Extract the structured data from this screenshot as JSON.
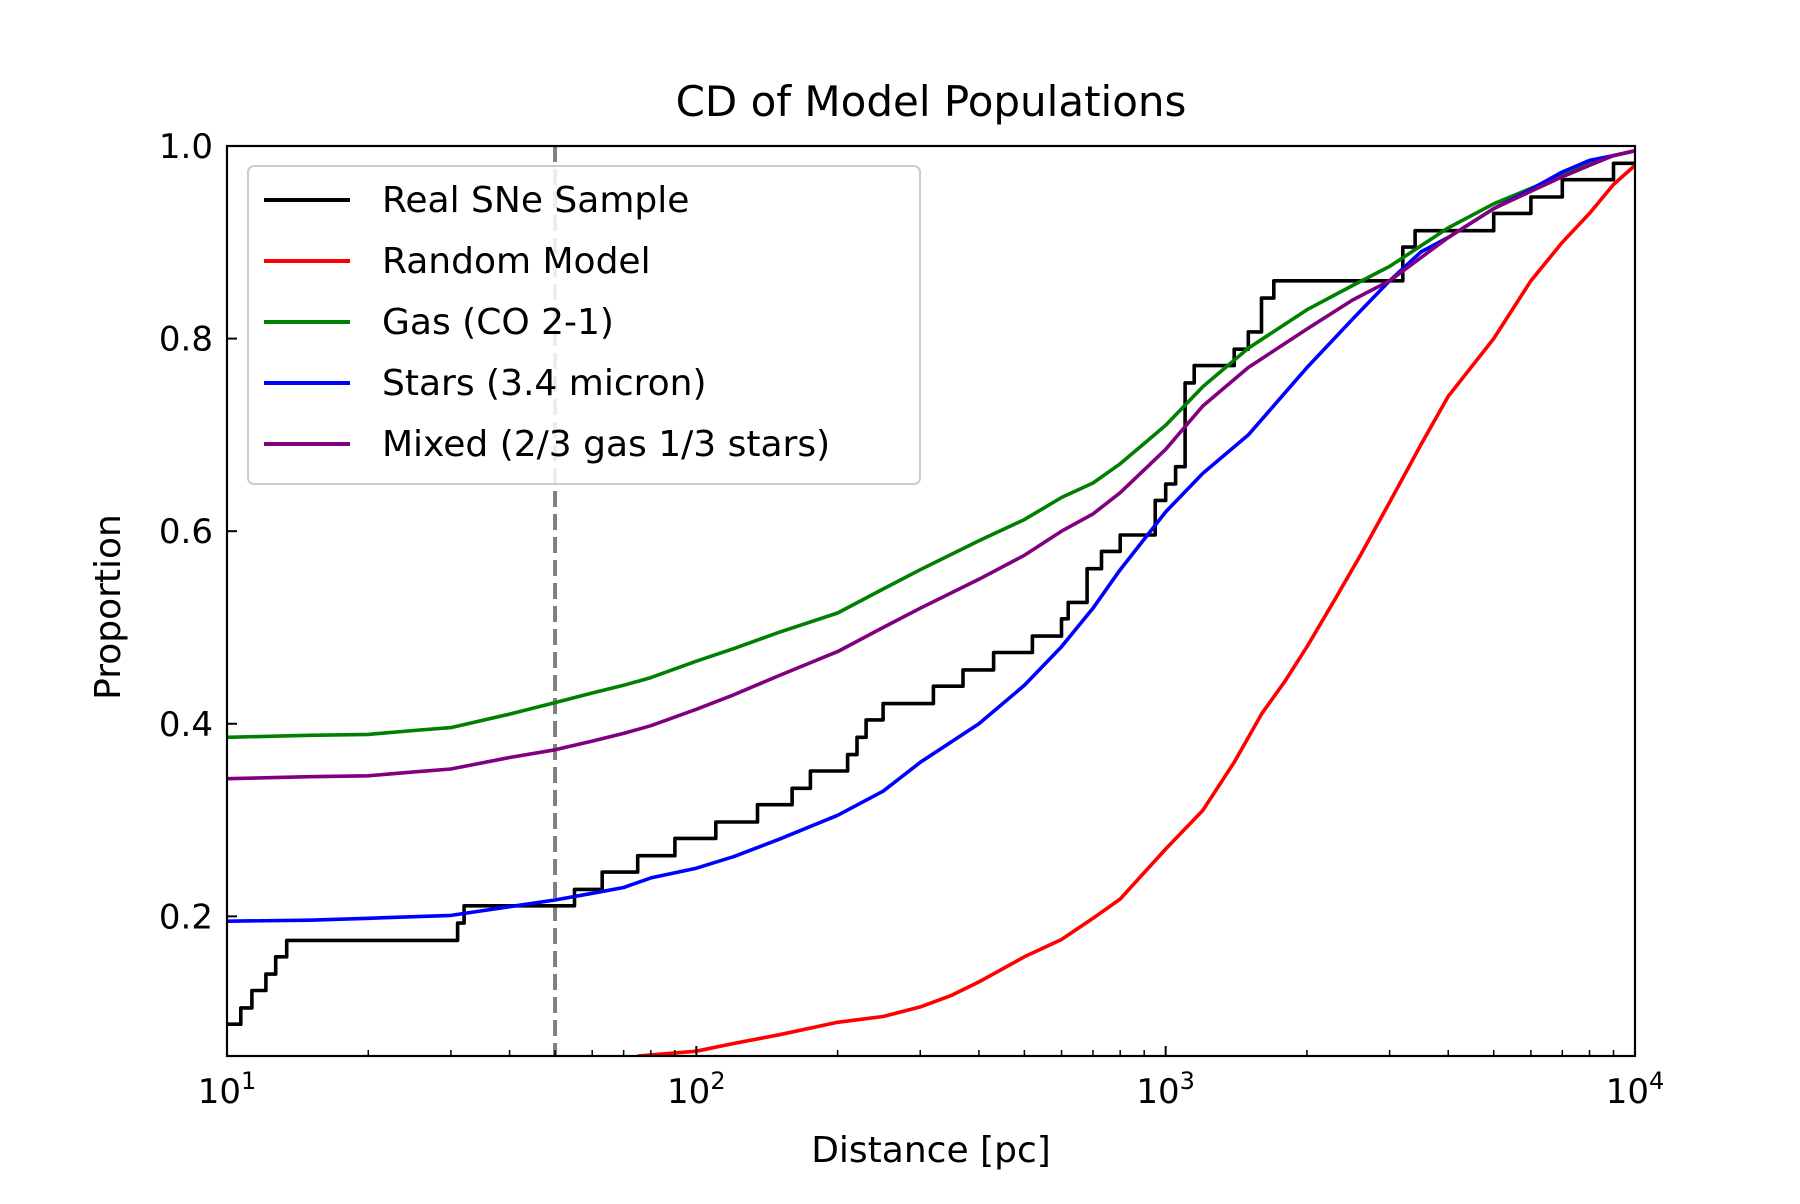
{
  "chart_data": {
    "type": "line",
    "title": "CD of Model Populations",
    "xlabel": "Distance [pc]",
    "ylabel": "Proportion",
    "xscale": "log",
    "xlim": [
      10,
      10000
    ],
    "ylim": [
      0.055,
      1.0
    ],
    "x_tick_labels": [
      {
        "value": 10,
        "base": "10",
        "exp": "1"
      },
      {
        "value": 100,
        "base": "10",
        "exp": "2"
      },
      {
        "value": 1000,
        "base": "10",
        "exp": "3"
      },
      {
        "value": 10000,
        "base": "10",
        "exp": "4"
      }
    ],
    "y_ticks": [
      0.2,
      0.4,
      0.6,
      0.8,
      1.0
    ],
    "y_tick_labels": [
      "0.2",
      "0.4",
      "0.6",
      "0.8",
      "1.0"
    ],
    "grid": false,
    "legend_position": "top-left",
    "reference_line": {
      "x": 50,
      "style": "dashed",
      "color": "#808080"
    },
    "series": [
      {
        "name": "Real SNe Sample",
        "color": "#000000",
        "step": true,
        "x": [
          10,
          10.7,
          11.3,
          12.1,
          12.7,
          13.4,
          31,
          32,
          55,
          63,
          75,
          90,
          110,
          135,
          160,
          175,
          210,
          220,
          230,
          250,
          320,
          370,
          430,
          520,
          600,
          620,
          680,
          730,
          800,
          950,
          1000,
          1050,
          1100,
          1150,
          1400,
          1500,
          1600,
          1700,
          2000,
          3200,
          3400,
          3600,
          5000,
          6000,
          7000,
          7500,
          8500,
          9000,
          10000
        ],
        "y": [
          0.088,
          0.105,
          0.123,
          0.14,
          0.158,
          0.175,
          0.193,
          0.211,
          0.228,
          0.246,
          0.263,
          0.281,
          0.298,
          0.316,
          0.333,
          0.351,
          0.368,
          0.386,
          0.404,
          0.421,
          0.439,
          0.456,
          0.474,
          0.491,
          0.509,
          0.526,
          0.561,
          0.579,
          0.596,
          0.632,
          0.649,
          0.667,
          0.754,
          0.772,
          0.789,
          0.807,
          0.842,
          0.86,
          0.86,
          0.895,
          0.912,
          0.912,
          0.93,
          0.947,
          0.965,
          0.965,
          0.965,
          0.982,
          0.982
        ]
      },
      {
        "name": "Random Model",
        "color": "#ff0000",
        "step": false,
        "x": [
          75,
          100,
          120,
          150,
          200,
          250,
          300,
          350,
          400,
          500,
          600,
          700,
          800,
          1000,
          1200,
          1400,
          1600,
          1800,
          2000,
          2300,
          2600,
          3000,
          3500,
          4000,
          5000,
          6000,
          7000,
          8000,
          9000,
          10000
        ],
        "y": [
          0.055,
          0.06,
          0.068,
          0.077,
          0.09,
          0.096,
          0.106,
          0.118,
          0.132,
          0.158,
          0.176,
          0.198,
          0.218,
          0.27,
          0.31,
          0.36,
          0.41,
          0.445,
          0.48,
          0.53,
          0.575,
          0.63,
          0.69,
          0.74,
          0.8,
          0.86,
          0.9,
          0.93,
          0.96,
          0.98
        ]
      },
      {
        "name": "Gas (CO 2-1)",
        "color": "#008000",
        "step": false,
        "x": [
          10,
          15,
          20,
          25,
          30,
          40,
          50,
          60,
          70,
          80,
          100,
          120,
          150,
          200,
          250,
          300,
          400,
          500,
          600,
          700,
          800,
          1000,
          1200,
          1500,
          2000,
          2500,
          3000,
          4000,
          5000,
          6000,
          7000,
          8000,
          9000,
          10000
        ],
        "y": [
          0.386,
          0.388,
          0.389,
          0.393,
          0.396,
          0.41,
          0.422,
          0.432,
          0.44,
          0.448,
          0.465,
          0.478,
          0.495,
          0.515,
          0.54,
          0.56,
          0.59,
          0.612,
          0.635,
          0.65,
          0.67,
          0.71,
          0.75,
          0.79,
          0.83,
          0.855,
          0.875,
          0.915,
          0.94,
          0.956,
          0.97,
          0.982,
          0.99,
          0.995
        ]
      },
      {
        "name": "Stars (3.4 micron)",
        "color": "#0000ff",
        "step": false,
        "x": [
          10,
          15,
          20,
          30,
          40,
          50,
          60,
          70,
          80,
          100,
          120,
          150,
          200,
          250,
          300,
          400,
          500,
          600,
          700,
          800,
          1000,
          1200,
          1500,
          2000,
          2500,
          3000,
          3500,
          4000,
          5000,
          6000,
          7000,
          8000,
          9000,
          10000
        ],
        "y": [
          0.195,
          0.196,
          0.198,
          0.201,
          0.21,
          0.217,
          0.224,
          0.23,
          0.24,
          0.25,
          0.262,
          0.28,
          0.305,
          0.33,
          0.36,
          0.4,
          0.44,
          0.48,
          0.52,
          0.56,
          0.62,
          0.66,
          0.7,
          0.77,
          0.82,
          0.86,
          0.89,
          0.905,
          0.935,
          0.955,
          0.973,
          0.985,
          0.99,
          0.995
        ]
      },
      {
        "name": "Mixed (2/3 gas 1/3 stars)",
        "color": "#800080",
        "step": false,
        "x": [
          10,
          15,
          20,
          25,
          30,
          40,
          50,
          60,
          70,
          80,
          100,
          120,
          150,
          200,
          250,
          300,
          400,
          500,
          600,
          700,
          800,
          1000,
          1200,
          1500,
          2000,
          2500,
          3000,
          4000,
          5000,
          6000,
          7000,
          8000,
          9000,
          10000
        ],
        "y": [
          0.343,
          0.345,
          0.346,
          0.35,
          0.353,
          0.365,
          0.373,
          0.382,
          0.39,
          0.398,
          0.415,
          0.43,
          0.45,
          0.475,
          0.5,
          0.52,
          0.55,
          0.575,
          0.6,
          0.618,
          0.64,
          0.685,
          0.73,
          0.77,
          0.81,
          0.84,
          0.86,
          0.905,
          0.935,
          0.953,
          0.968,
          0.98,
          0.99,
          0.995
        ]
      }
    ]
  }
}
